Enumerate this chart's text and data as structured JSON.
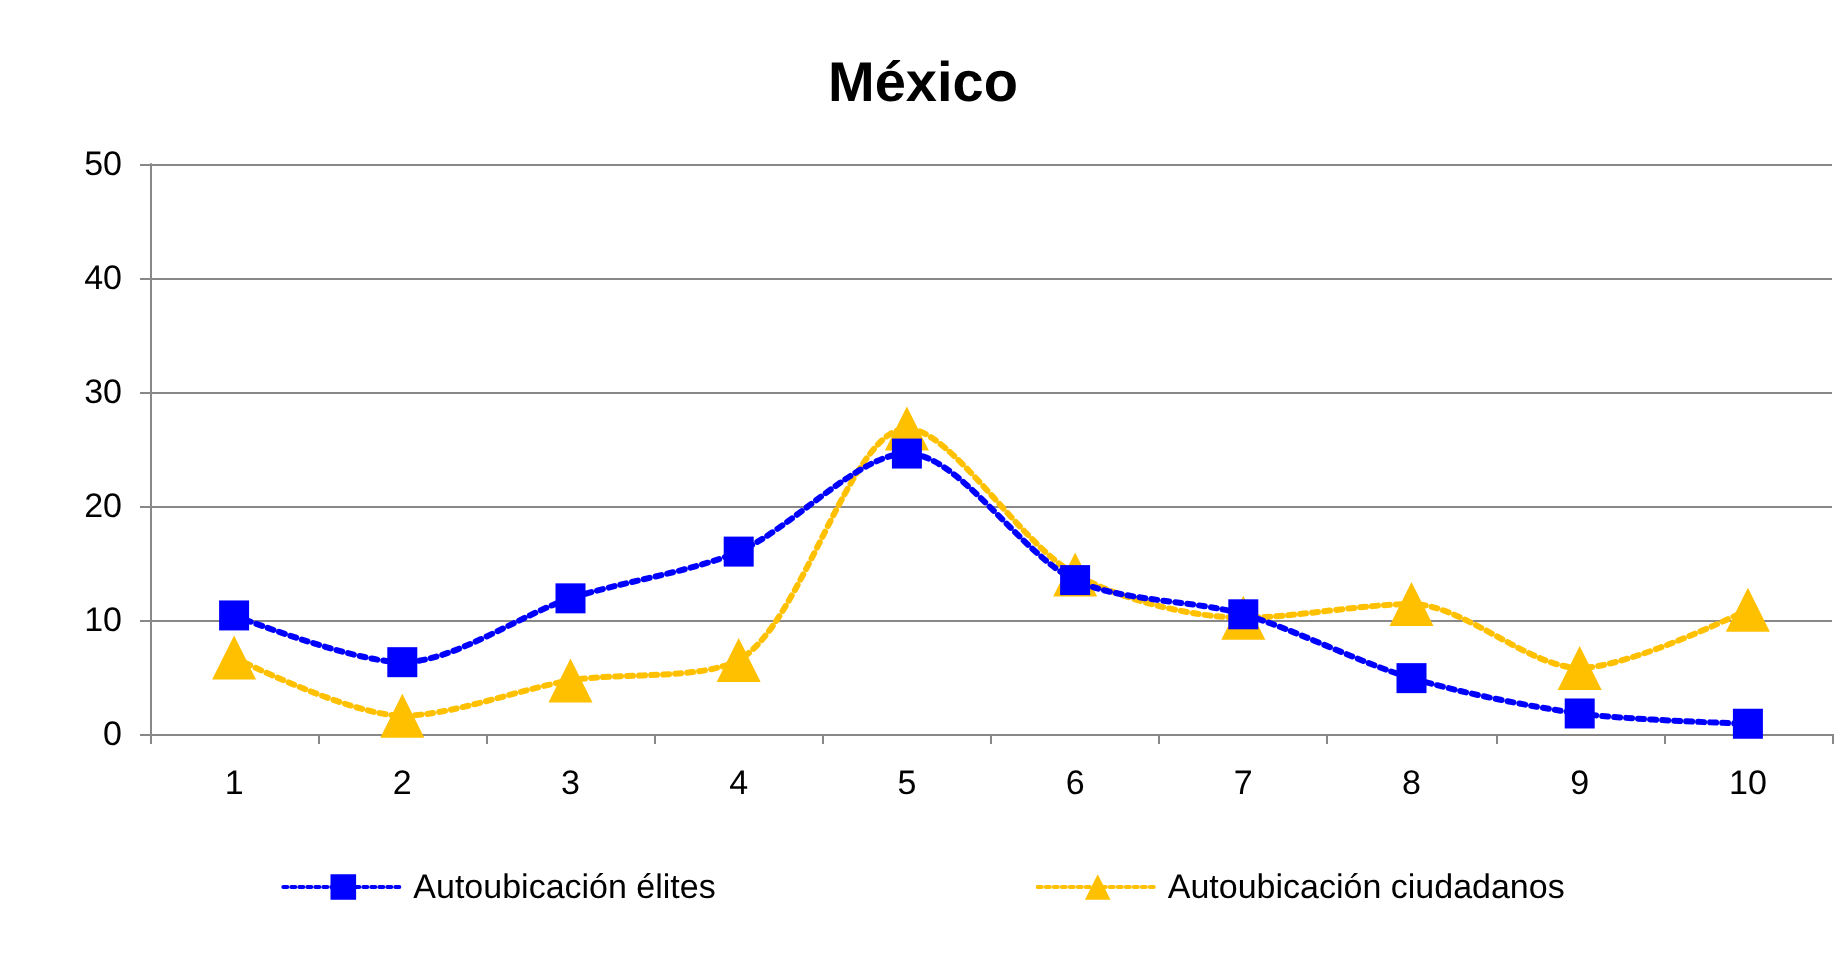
{
  "chart_data": {
    "type": "line",
    "title": "México",
    "categories": [
      "1",
      "2",
      "3",
      "4",
      "5",
      "6",
      "7",
      "8",
      "9",
      "10"
    ],
    "series": [
      {
        "name": "Autoubicación élites",
        "color": "#0000ff",
        "marker": "square",
        "values": [
          10.4,
          6.3,
          11.9,
          16,
          24.6,
          13.5,
          10.5,
          4.9,
          1.8,
          0.9
        ]
      },
      {
        "name": "Autoubicación ciudadanos",
        "color": "#ffc000",
        "marker": "triangle",
        "values": [
          6.7,
          1.6,
          4.7,
          6.5,
          26.8,
          14,
          10.2,
          11.4,
          5.8,
          10.9
        ]
      }
    ],
    "ylim": [
      0,
      50
    ],
    "yticks": [
      0,
      10,
      20,
      30,
      40,
      50
    ],
    "grid": "y",
    "legend": "bottom",
    "line_style": "dotted"
  }
}
